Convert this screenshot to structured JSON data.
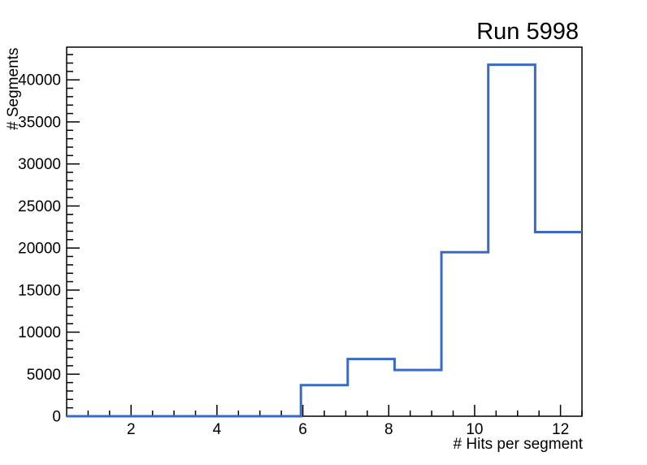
{
  "chart_data": {
    "type": "histogram",
    "title": "Run 5998",
    "xlabel": "# Hits per segment",
    "ylabel": "# Segments",
    "xlim": [
      0.5,
      12.5
    ],
    "ylim": [
      0,
      43890
    ],
    "grid": false,
    "legend": false,
    "bin_edges": [
      0.5,
      1.591,
      2.682,
      3.773,
      4.864,
      5.955,
      7.045,
      8.136,
      9.227,
      10.318,
      11.409,
      12.5
    ],
    "counts": [
      0,
      0,
      0,
      0,
      0,
      3700,
      6800,
      5500,
      19500,
      41800,
      21900
    ],
    "x_axis": {
      "major_ticks": [
        2,
        4,
        6,
        8,
        10,
        12
      ],
      "minor_min": 1,
      "minor_max": 12.5,
      "minor_step": 0.5
    },
    "y_axis": {
      "major_ticks": [
        0,
        5000,
        10000,
        15000,
        20000,
        25000,
        30000,
        35000,
        40000
      ],
      "minor_min": 1000,
      "minor_max": 43000,
      "minor_step": 1000
    },
    "line_color": "#3a6bc4",
    "line_width": 3,
    "frame_color": "#000000",
    "background_color": "#ffffff"
  }
}
